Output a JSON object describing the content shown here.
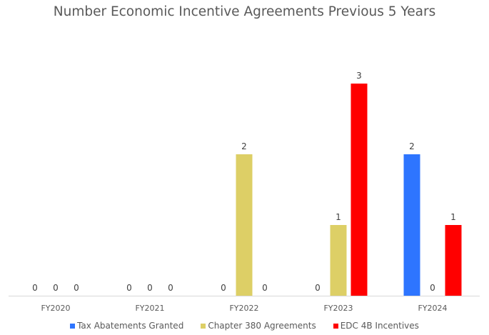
{
  "chart_data": {
    "type": "bar",
    "title": "Number Economic Incentive Agreements Previous 5 Years",
    "categories": [
      "FY2020",
      "FY2021",
      "FY2022",
      "FY2023",
      "FY2024"
    ],
    "series": [
      {
        "name": "Tax Abatements Granted",
        "color": "#2E75FF",
        "values": [
          0,
          0,
          0,
          0,
          2
        ]
      },
      {
        "name": "Chapter 380 Agreements",
        "color": "#DDCF66",
        "values": [
          0,
          0,
          2,
          1,
          0
        ]
      },
      {
        "name": "EDC 4B Incentives",
        "color": "#FF0000",
        "values": [
          0,
          0,
          0,
          3,
          1
        ]
      }
    ],
    "ylim": [
      0,
      3
    ],
    "grid": false,
    "data_labels": true,
    "legend": "bottom"
  }
}
